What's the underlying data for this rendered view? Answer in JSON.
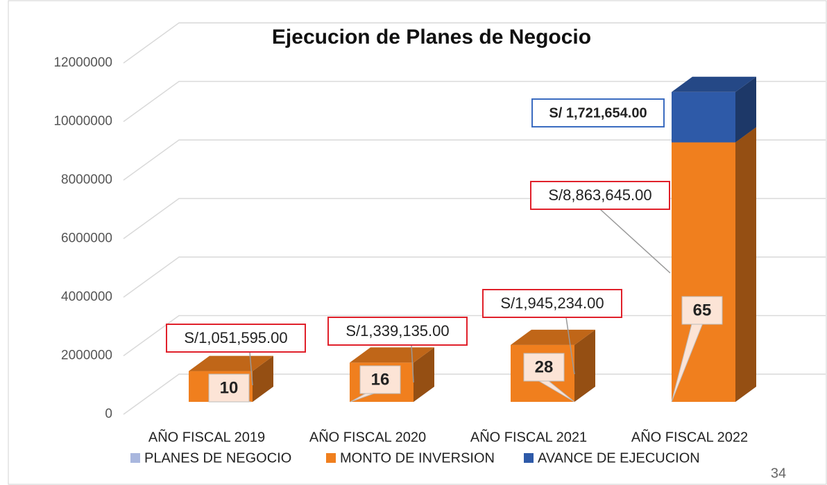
{
  "chart_data": {
    "type": "bar3d_stacked",
    "title": "Ejecucion de Planes de Negocio",
    "categories": [
      "AÑO FISCAL 2019",
      "AÑO FISCAL 2020",
      "AÑO FISCAL 2021",
      "AÑO FISCAL 2022"
    ],
    "series": [
      {
        "name": "PLANES DE NEGOCIO",
        "color": "#a9b7de",
        "values": [
          10,
          16,
          28,
          65
        ]
      },
      {
        "name": "MONTO DE INVERSION",
        "color": "#f07f1e",
        "values": [
          1051595,
          1339135,
          1945234,
          8863645
        ],
        "value_labels": [
          "S/1,051,595.00",
          "S/1,339,135.00",
          "S/1,945,234.00",
          "S/8,863,645.00"
        ]
      },
      {
        "name": "AVANCE DE EJECUCION",
        "color": "#2e5aa8",
        "values": [
          null,
          null,
          null,
          1721654
        ],
        "value_labels": [
          null,
          null,
          null,
          "S/ 1,721,654.00"
        ]
      }
    ],
    "ylim": [
      0,
      12000000
    ],
    "yticks": [
      0,
      2000000,
      4000000,
      6000000,
      8000000,
      10000000,
      12000000
    ],
    "grid": true,
    "legend": "bottom"
  },
  "page_number": "34"
}
